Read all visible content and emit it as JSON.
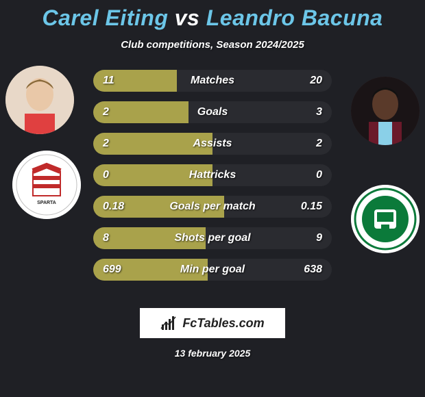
{
  "title": {
    "player1": "Carel Eiting",
    "vs": "vs",
    "player2": "Leandro Bacuna"
  },
  "subtitle": "Club competitions, Season 2024/2025",
  "colors": {
    "background": "#1f2025",
    "accent_text": "#6cc6e8",
    "bar_filled": "#a9a24b",
    "bar_empty": "#2a2b30",
    "text": "#ffffff",
    "club2_green": "#0b7a3a"
  },
  "stats": [
    {
      "label": "Matches",
      "p1": "11",
      "p2": "20",
      "fill_pct": 35
    },
    {
      "label": "Goals",
      "p1": "2",
      "p2": "3",
      "fill_pct": 40
    },
    {
      "label": "Assists",
      "p1": "2",
      "p2": "2",
      "fill_pct": 50
    },
    {
      "label": "Hattricks",
      "p1": "0",
      "p2": "0",
      "fill_pct": 50
    },
    {
      "label": "Goals per match",
      "p1": "0.18",
      "p2": "0.15",
      "fill_pct": 55
    },
    {
      "label": "Shots per goal",
      "p1": "8",
      "p2": "9",
      "fill_pct": 47
    },
    {
      "label": "Min per goal",
      "p1": "699",
      "p2": "638",
      "fill_pct": 48
    }
  ],
  "footer": {
    "brand": "FcTables.com",
    "date": "13 february 2025"
  },
  "avatars": {
    "player1_bg": "#e8d8c8",
    "player2_bg": "#3a2426",
    "club1_name": "SPARTA",
    "club2_name": "FC GRONINGEN"
  }
}
